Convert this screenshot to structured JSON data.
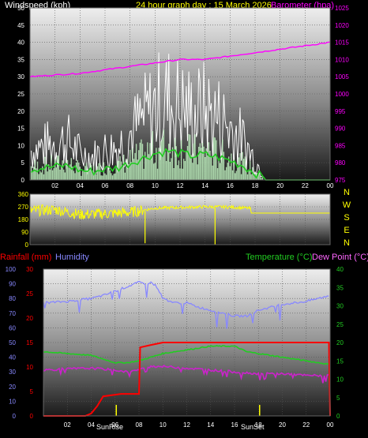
{
  "header": {
    "wind_label": "Windspeed (kph)",
    "date_label": "24 hour graph day : 15 March 2026",
    "baro_label": "Barometer (hpa)"
  },
  "panel3_labels": {
    "rain": "Rainfall (mm)",
    "humidity": "Humidity",
    "temperature": "Temperature (°C)",
    "dewpoint": "Dew Point (°C)",
    "sunrise": "SunRise",
    "sunset": "SunSet"
  },
  "colors": {
    "wind": "#ffffff",
    "gust_fill": "#bff0bf",
    "wind_avg": "#22cc22",
    "barometer": "#ff00ff",
    "direction": "#ffff00",
    "rain": "#ff0000",
    "humidity": "#8888ff",
    "temperature": "#22cc22",
    "dewpoint": "#cc22cc",
    "sun_marker": "#ffff00"
  },
  "chart_data": [
    {
      "type": "line",
      "x_ticks": [
        "02",
        "04",
        "06",
        "08",
        "10",
        "12",
        "14",
        "16",
        "18",
        "20",
        "22",
        "00"
      ],
      "left_axis": {
        "label": "Windspeed (kph)",
        "ticks": [
          "0",
          "5",
          "10",
          "15",
          "20",
          "25",
          "30",
          "35",
          "40",
          "45",
          "50"
        ],
        "ylim": [
          0,
          50
        ]
      },
      "right_axis": {
        "label": "Barometer (hpa)",
        "ticks": [
          "975",
          "980",
          "985",
          "990",
          "995",
          "1000",
          "1005",
          "1010",
          "1015",
          "1020",
          "1025"
        ],
        "ylim": [
          975,
          1025
        ]
      },
      "series": [
        {
          "name": "Windspeed (kph)",
          "hours": [
            0,
            1,
            2,
            3,
            4,
            5,
            6,
            7,
            8,
            9,
            10,
            11,
            12,
            13,
            14,
            15,
            16,
            17,
            18,
            19,
            24
          ],
          "values": [
            9,
            10,
            11,
            12,
            8,
            7,
            9,
            10,
            14,
            18,
            22,
            24,
            22,
            20,
            21,
            19,
            16,
            12,
            6,
            0,
            0
          ]
        },
        {
          "name": "Barometer (hpa)",
          "hours": [
            0,
            2,
            4,
            6,
            8,
            10,
            12,
            14,
            16,
            18,
            20,
            22,
            24
          ],
          "values": [
            1005,
            1005.5,
            1006,
            1007,
            1008,
            1009,
            1010,
            1010,
            1011,
            1012,
            1013,
            1014,
            1015
          ]
        }
      ]
    },
    {
      "type": "line",
      "x_ticks": [
        "02",
        "04",
        "06",
        "08",
        "10",
        "12",
        "14",
        "16",
        "18",
        "20",
        "22",
        "00"
      ],
      "left_axis": {
        "ticks": [
          "0",
          "90",
          "180",
          "270",
          "360"
        ],
        "ylim": [
          0,
          360
        ]
      },
      "right_axis": {
        "ticks": [
          "N",
          "W",
          "S",
          "E",
          "N"
        ]
      },
      "series": [
        {
          "hours": [
            0,
            2,
            4,
            6,
            8,
            9,
            10,
            12,
            14,
            16,
            17.5,
            18,
            24
          ],
          "values": [
            240,
            250,
            215,
            220,
            230,
            245,
            260,
            265,
            270,
            268,
            260,
            225,
            225
          ]
        }
      ]
    },
    {
      "type": "line",
      "x_ticks": [
        "02",
        "04",
        "06",
        "08",
        "10",
        "12",
        "14",
        "16",
        "18",
        "20",
        "22",
        "00"
      ],
      "left_axis_rain": {
        "label": "Rainfall (mm)",
        "ticks": [
          "0",
          "5",
          "10",
          "15",
          "20",
          "25",
          "30"
        ],
        "ylim": [
          0,
          30
        ]
      },
      "left_axis_humidity": {
        "label": "Humidity",
        "ticks": [
          "0",
          "10",
          "20",
          "30",
          "40",
          "50",
          "60",
          "70",
          "80",
          "90",
          "100"
        ],
        "ylim": [
          0,
          100
        ]
      },
      "right_axis": {
        "label": "Temperature (°C)",
        "ticks": [
          "0",
          "5",
          "10",
          "15",
          "20",
          "25",
          "30",
          "35",
          "40"
        ],
        "ylim": [
          0,
          40
        ]
      },
      "series": [
        {
          "name": "Humidity",
          "hours": [
            0,
            2,
            4,
            5,
            6,
            7,
            8,
            8.5,
            9,
            9.5,
            10,
            11,
            12,
            13,
            14,
            15,
            16,
            17,
            18,
            19,
            20,
            21,
            22,
            23,
            24
          ],
          "values": [
            77,
            78,
            80,
            82,
            85,
            88,
            91,
            90,
            91,
            88,
            80,
            77,
            77,
            74,
            72,
            70,
            68,
            68,
            72,
            74,
            76,
            77,
            78,
            80,
            82
          ]
        },
        {
          "name": "Temperature (°C)",
          "hours": [
            0,
            2,
            4,
            5,
            6,
            7,
            8,
            9,
            10,
            11,
            12,
            13,
            14,
            15,
            16,
            17,
            18,
            19,
            20,
            21,
            22,
            23,
            24
          ],
          "values": [
            17.5,
            17,
            16.5,
            15.5,
            14.5,
            14.5,
            15,
            16,
            17,
            17.5,
            18,
            18.5,
            19,
            19,
            19,
            17.5,
            17,
            16.5,
            16,
            15.5,
            15,
            14.5,
            14
          ]
        },
        {
          "name": "Dew Point (°C)",
          "hours": [
            0,
            2,
            4,
            6,
            7,
            8,
            9,
            10,
            12,
            14,
            16,
            18,
            20,
            22,
            24
          ],
          "values": [
            12.5,
            12.8,
            13,
            12.5,
            12,
            12.5,
            13.5,
            13.5,
            13,
            12.5,
            12,
            11.5,
            11.5,
            11,
            11
          ]
        },
        {
          "name": "Rainfall (mm)",
          "hours": [
            0,
            3.5,
            4.0,
            4.5,
            5.0,
            6.5,
            7.0,
            7.5,
            8.0,
            8.1,
            9,
            10,
            12,
            14,
            16,
            18,
            20,
            22,
            23.9,
            24
          ],
          "values": [
            0,
            0,
            0.5,
            2,
            4,
            4.5,
            4.5,
            4.5,
            4.5,
            14,
            14.5,
            15,
            15,
            15,
            15,
            15,
            15,
            15,
            15,
            0
          ]
        }
      ]
    }
  ]
}
